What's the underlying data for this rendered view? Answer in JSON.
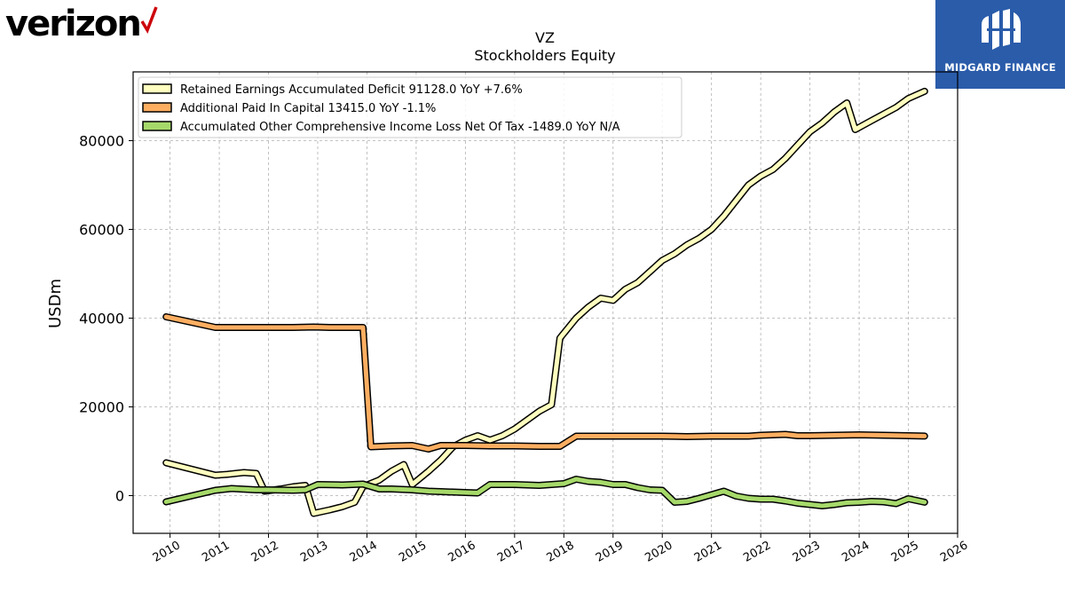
{
  "header": {
    "left_logo": "verizon",
    "right_logo": "MIDGARD FINANCE",
    "accent_color": "#cd040b",
    "brand_bg": "#2a5caa"
  },
  "chart_data": {
    "type": "line",
    "title": "VZ",
    "subtitle": "Stockholders  Equity",
    "xlabel": "",
    "ylabel": "USDm",
    "xlim": [
      2009.25,
      2026.0
    ],
    "ylim": [
      -8500,
      95500
    ],
    "x_ticks": [
      "2010",
      "2011",
      "2012",
      "2013",
      "2014",
      "2015",
      "2016",
      "2017",
      "2018",
      "2019",
      "2020",
      "2021",
      "2022",
      "2023",
      "2024",
      "2025",
      "2026"
    ],
    "y_ticks": [
      "0",
      "20000",
      "40000",
      "60000",
      "80000"
    ],
    "grid": true,
    "legend_position": "top-left",
    "series": [
      {
        "name": "Retained Earnings Accumulated Deficit  91128.0 YoY +7.6%",
        "color": "#ffffbf",
        "points": [
          [
            2009.92,
            7400
          ],
          [
            2010.92,
            4600
          ],
          [
            2011.17,
            4800
          ],
          [
            2011.5,
            5200
          ],
          [
            2011.75,
            5000
          ],
          [
            2011.92,
            1000
          ],
          [
            2012.25,
            1500
          ],
          [
            2012.5,
            2000
          ],
          [
            2012.75,
            2300
          ],
          [
            2012.92,
            -4000
          ],
          [
            2013.25,
            -3200
          ],
          [
            2013.5,
            -2500
          ],
          [
            2013.75,
            -1500
          ],
          [
            2013.92,
            2000
          ],
          [
            2014.25,
            3500
          ],
          [
            2014.5,
            5500
          ],
          [
            2014.75,
            7000
          ],
          [
            2014.92,
            2500
          ],
          [
            2015.25,
            5500
          ],
          [
            2015.5,
            8000
          ],
          [
            2015.75,
            11000
          ],
          [
            2016.0,
            12500
          ],
          [
            2016.25,
            13500
          ],
          [
            2016.5,
            12500
          ],
          [
            2016.75,
            13500
          ],
          [
            2017.0,
            15000
          ],
          [
            2017.25,
            17000
          ],
          [
            2017.5,
            19000
          ],
          [
            2017.75,
            20500
          ],
          [
            2017.92,
            35500
          ],
          [
            2018.25,
            40000
          ],
          [
            2018.5,
            42500
          ],
          [
            2018.75,
            44500
          ],
          [
            2019.0,
            44000
          ],
          [
            2019.25,
            46500
          ],
          [
            2019.5,
            48000
          ],
          [
            2019.75,
            50500
          ],
          [
            2020.0,
            53000
          ],
          [
            2020.25,
            54500
          ],
          [
            2020.5,
            56500
          ],
          [
            2020.75,
            58000
          ],
          [
            2021.0,
            60000
          ],
          [
            2021.25,
            63000
          ],
          [
            2021.5,
            66500
          ],
          [
            2021.75,
            70000
          ],
          [
            2022.0,
            72000
          ],
          [
            2022.25,
            73500
          ],
          [
            2022.5,
            76000
          ],
          [
            2022.75,
            79000
          ],
          [
            2023.0,
            82000
          ],
          [
            2023.25,
            84000
          ],
          [
            2023.5,
            86500
          ],
          [
            2023.75,
            88500
          ],
          [
            2023.92,
            82500
          ],
          [
            2024.25,
            84500
          ],
          [
            2024.5,
            86000
          ],
          [
            2024.75,
            87500
          ],
          [
            2025.0,
            89500
          ],
          [
            2025.33,
            91128
          ]
        ]
      },
      {
        "name": "Additional Paid In Capital  13415.0 YoY -1.1%",
        "color": "#fdae61",
        "points": [
          [
            2009.92,
            40300
          ],
          [
            2010.92,
            37900
          ],
          [
            2011.5,
            37900
          ],
          [
            2012.0,
            37900
          ],
          [
            2012.5,
            37900
          ],
          [
            2012.92,
            38000
          ],
          [
            2013.25,
            37900
          ],
          [
            2013.92,
            37900
          ],
          [
            2014.08,
            11000
          ],
          [
            2014.5,
            11200
          ],
          [
            2014.92,
            11300
          ],
          [
            2015.25,
            10500
          ],
          [
            2015.5,
            11300
          ],
          [
            2016.0,
            11300
          ],
          [
            2016.5,
            11200
          ],
          [
            2017.0,
            11200
          ],
          [
            2017.5,
            11100
          ],
          [
            2017.92,
            11100
          ],
          [
            2018.25,
            13400
          ],
          [
            2018.75,
            13400
          ],
          [
            2019.5,
            13400
          ],
          [
            2020.0,
            13400
          ],
          [
            2020.5,
            13300
          ],
          [
            2021.0,
            13400
          ],
          [
            2021.75,
            13400
          ],
          [
            2022.0,
            13600
          ],
          [
            2022.5,
            13800
          ],
          [
            2022.75,
            13500
          ],
          [
            2023.0,
            13500
          ],
          [
            2023.5,
            13600
          ],
          [
            2024.0,
            13700
          ],
          [
            2024.5,
            13600
          ],
          [
            2025.0,
            13500
          ],
          [
            2025.33,
            13415
          ]
        ]
      },
      {
        "name": "Accumulated Other Comprehensive Income Loss Net Of Tax  -1489.0 YoY N/A",
        "color": "#a6d96a",
        "points": [
          [
            2009.92,
            -1400
          ],
          [
            2010.92,
            1200
          ],
          [
            2011.25,
            1600
          ],
          [
            2011.75,
            1300
          ],
          [
            2012.0,
            1300
          ],
          [
            2012.5,
            1200
          ],
          [
            2012.75,
            1300
          ],
          [
            2013.0,
            2500
          ],
          [
            2013.5,
            2400
          ],
          [
            2013.92,
            2600
          ],
          [
            2014.25,
            1500
          ],
          [
            2014.5,
            1500
          ],
          [
            2014.92,
            1300
          ],
          [
            2015.25,
            1000
          ],
          [
            2015.5,
            900
          ],
          [
            2016.0,
            700
          ],
          [
            2016.25,
            600
          ],
          [
            2016.5,
            2500
          ],
          [
            2017.0,
            2500
          ],
          [
            2017.5,
            2300
          ],
          [
            2017.75,
            2500
          ],
          [
            2018.0,
            2700
          ],
          [
            2018.25,
            3700
          ],
          [
            2018.5,
            3200
          ],
          [
            2018.75,
            3000
          ],
          [
            2019.0,
            2500
          ],
          [
            2019.25,
            2500
          ],
          [
            2019.5,
            1800
          ],
          [
            2019.75,
            1300
          ],
          [
            2020.0,
            1200
          ],
          [
            2020.25,
            -1500
          ],
          [
            2020.5,
            -1300
          ],
          [
            2020.75,
            -600
          ],
          [
            2021.0,
            200
          ],
          [
            2021.25,
            1000
          ],
          [
            2021.5,
            -100
          ],
          [
            2021.75,
            -600
          ],
          [
            2022.0,
            -800
          ],
          [
            2022.25,
            -800
          ],
          [
            2022.5,
            -1200
          ],
          [
            2022.75,
            -1700
          ],
          [
            2023.0,
            -2000
          ],
          [
            2023.25,
            -2300
          ],
          [
            2023.5,
            -2000
          ],
          [
            2023.75,
            -1600
          ],
          [
            2024.0,
            -1500
          ],
          [
            2024.25,
            -1300
          ],
          [
            2024.5,
            -1400
          ],
          [
            2024.75,
            -1800
          ],
          [
            2025.0,
            -700
          ],
          [
            2025.33,
            -1489
          ]
        ]
      }
    ]
  }
}
